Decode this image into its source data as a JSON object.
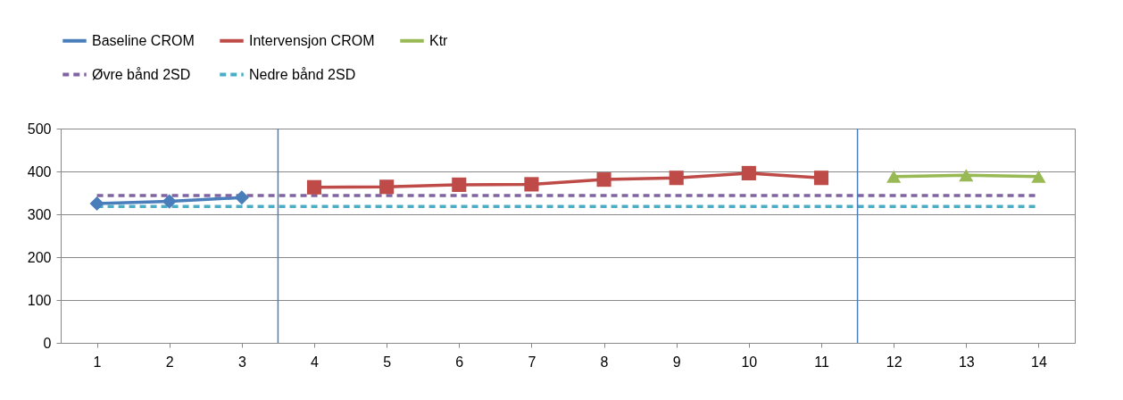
{
  "chart_data": {
    "type": "line",
    "xlim": [
      0.5,
      14.5
    ],
    "xticks": [
      1,
      2,
      3,
      4,
      5,
      6,
      7,
      8,
      9,
      10,
      11,
      12,
      13,
      14
    ],
    "ylim": [
      0,
      500
    ],
    "yticks": [
      0,
      100,
      200,
      300,
      400,
      500
    ],
    "grid": "y",
    "legend": "top",
    "series": [
      {
        "name": "Baseline CROM",
        "color": "#4a7ebb",
        "marker": "diamond",
        "line_style": "solid",
        "x": [
          1,
          2,
          3
        ],
        "values": [
          325,
          330,
          339
        ]
      },
      {
        "name": "Intervensjon CROM",
        "color": "#be4b48",
        "marker": "square",
        "line_style": "solid",
        "x": [
          4,
          5,
          6,
          7,
          8,
          9,
          10,
          11
        ],
        "values": [
          363,
          364,
          369,
          370,
          381,
          385,
          396,
          385
        ]
      },
      {
        "name": "Ktr",
        "color": "#98b954",
        "marker": "triangle",
        "line_style": "solid",
        "x": [
          12,
          13,
          14
        ],
        "values": [
          388,
          391,
          388
        ]
      },
      {
        "name": "Øvre bånd 2SD",
        "color": "#8064a2",
        "marker": "none",
        "line_style": "dashed",
        "x": [
          1,
          2,
          3,
          4,
          5,
          6,
          7,
          8,
          9,
          10,
          11,
          12,
          13,
          14
        ],
        "values": [
          344,
          344,
          344,
          344,
          344,
          344,
          344,
          344,
          344,
          344,
          344,
          344,
          344,
          344
        ]
      },
      {
        "name": "Nedre bånd 2SD",
        "color": "#4bacc6",
        "marker": "none",
        "line_style": "dashed",
        "x": [
          1,
          2,
          3,
          4,
          5,
          6,
          7,
          8,
          9,
          10,
          11,
          12,
          13,
          14
        ],
        "values": [
          318,
          318,
          318,
          318,
          318,
          318,
          318,
          318,
          318,
          318,
          318,
          318,
          318,
          318
        ]
      }
    ],
    "ref_lines": [
      {
        "axis": "x",
        "value": 3.5,
        "color": "#4a7ebb",
        "line_style": "solid"
      },
      {
        "axis": "x",
        "value": 11.5,
        "color": "#4a7ebb",
        "line_style": "solid"
      }
    ]
  }
}
